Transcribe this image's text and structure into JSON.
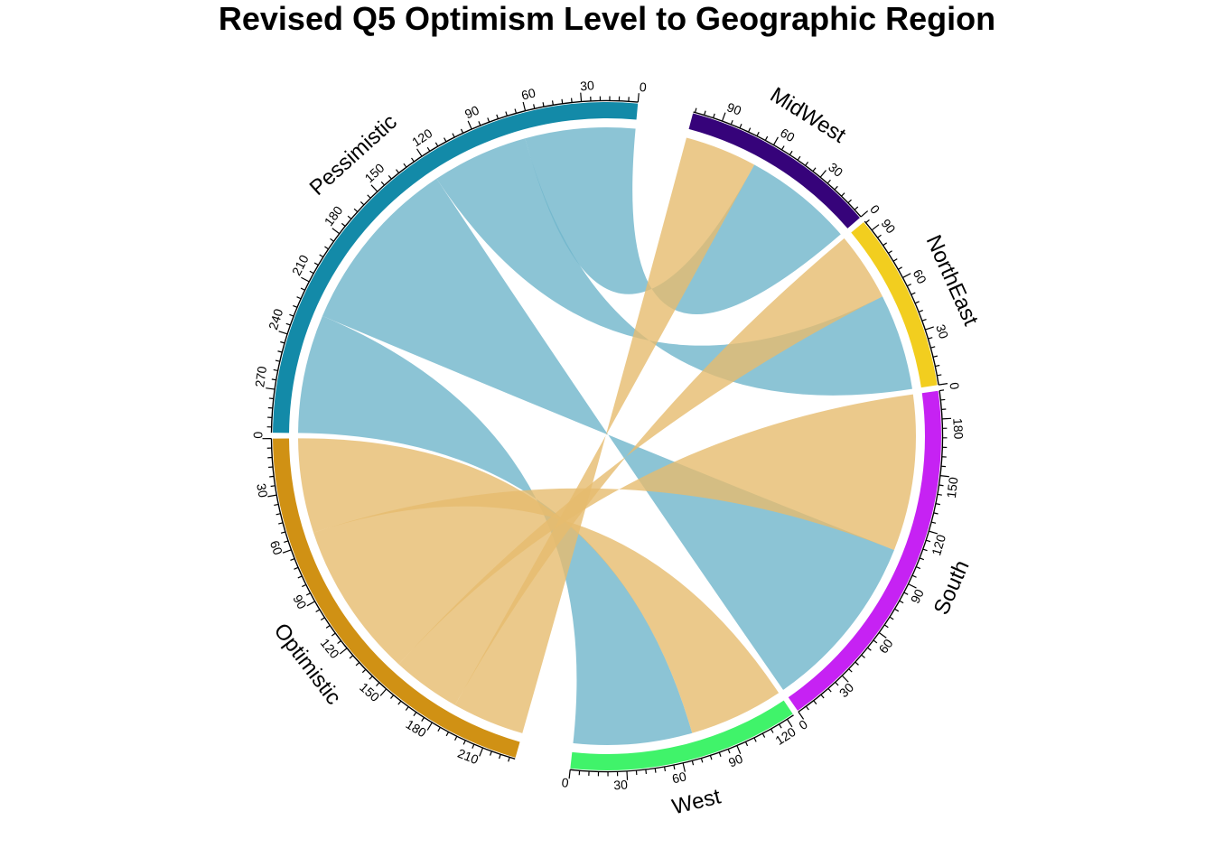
{
  "chart_data": {
    "type": "chord",
    "title": "Revised Q5 Optimism Level to Geographic Region",
    "sectors": [
      {
        "name": "Pessimistic",
        "total": 293,
        "color": "#138aa8"
      },
      {
        "name": "MidWest",
        "total": 106,
        "color": "#36037a"
      },
      {
        "name": "NorthEast",
        "total": 96,
        "color": "#f2ce1f"
      },
      {
        "name": "South",
        "total": 195,
        "color": "#c622f3"
      },
      {
        "name": "West",
        "total": 124,
        "color": "#40f36a"
      },
      {
        "name": "Optimistic",
        "total": 228,
        "color": "#d09114"
      }
    ],
    "sector_order": [
      "Pessimistic",
      "MidWest",
      "NorthEast",
      "South",
      "West",
      "Optimistic"
    ],
    "tick_step": 30,
    "links": [
      {
        "from": "Pessimistic",
        "to": "MidWest",
        "value": 64
      },
      {
        "from": "Pessimistic",
        "to": "NorthEast",
        "value": 56
      },
      {
        "from": "Pessimistic",
        "to": "South",
        "value": 104
      },
      {
        "from": "Pessimistic",
        "to": "West",
        "value": 69
      },
      {
        "from": "Optimistic",
        "to": "MidWest",
        "value": 42
      },
      {
        "from": "Optimistic",
        "to": "NorthEast",
        "value": 40
      },
      {
        "from": "Optimistic",
        "to": "South",
        "value": 91
      },
      {
        "from": "Optimistic",
        "to": "West",
        "value": 55
      }
    ],
    "link_colors": {
      "Pessimistic": "#6fb5cb",
      "Optimistic": "#e6bc6e"
    }
  }
}
